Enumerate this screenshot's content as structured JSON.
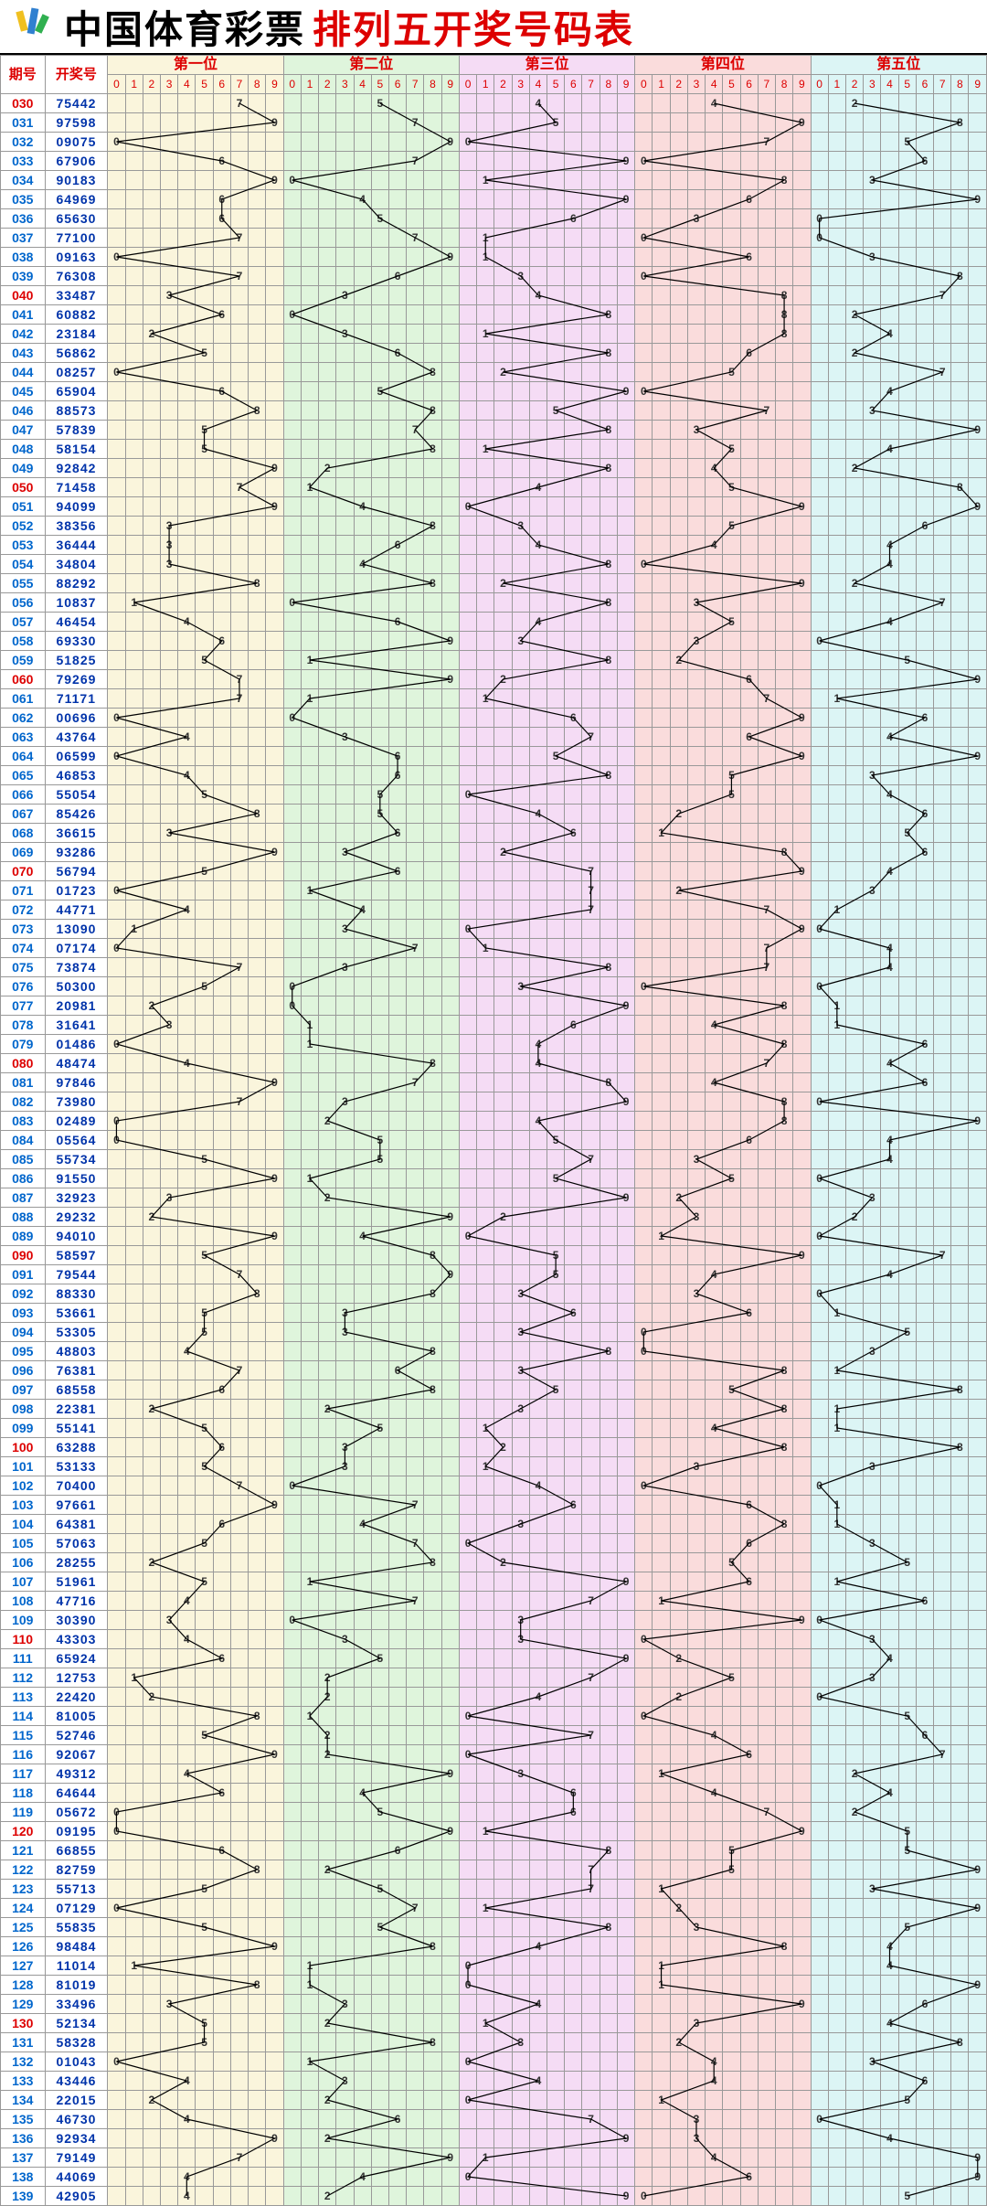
{
  "header": {
    "main": "中国体育彩票",
    "sub": "排列五开奖号码表"
  },
  "columns": {
    "period": "期号",
    "number": "开奖号",
    "positions": [
      "第一位",
      "第二位",
      "第三位",
      "第四位",
      "第五位"
    ]
  },
  "styling": {
    "position_bg": [
      "#faf5dc",
      "#dff5dc",
      "#f5dcf5",
      "#fadcdc",
      "#dcf5f5"
    ],
    "grid_color": "#999999",
    "line_color": "#000000",
    "line_width": 1.2,
    "period_color": "#0066cc",
    "period_red_color": "#dd0000",
    "number_color": "#0033aa",
    "header_text_color": "#dd0000",
    "digit_row_height": 20
  },
  "redPeriods": [
    "030",
    "040",
    "050",
    "060",
    "070",
    "080",
    "090",
    "100",
    "110",
    "120",
    "130"
  ],
  "rows": [
    {
      "p": "030",
      "n": "75442"
    },
    {
      "p": "031",
      "n": "97598"
    },
    {
      "p": "032",
      "n": "09075"
    },
    {
      "p": "033",
      "n": "67906"
    },
    {
      "p": "034",
      "n": "90183"
    },
    {
      "p": "035",
      "n": "64969"
    },
    {
      "p": "036",
      "n": "65630"
    },
    {
      "p": "037",
      "n": "77100"
    },
    {
      "p": "038",
      "n": "09163"
    },
    {
      "p": "039",
      "n": "76308"
    },
    {
      "p": "040",
      "n": "33487"
    },
    {
      "p": "041",
      "n": "60882"
    },
    {
      "p": "042",
      "n": "23184"
    },
    {
      "p": "043",
      "n": "56862"
    },
    {
      "p": "044",
      "n": "08257"
    },
    {
      "p": "045",
      "n": "65904"
    },
    {
      "p": "046",
      "n": "88573"
    },
    {
      "p": "047",
      "n": "57839"
    },
    {
      "p": "048",
      "n": "58154"
    },
    {
      "p": "049",
      "n": "92842"
    },
    {
      "p": "050",
      "n": "71458"
    },
    {
      "p": "051",
      "n": "94099"
    },
    {
      "p": "052",
      "n": "38356"
    },
    {
      "p": "053",
      "n": "36444"
    },
    {
      "p": "054",
      "n": "34804"
    },
    {
      "p": "055",
      "n": "88292"
    },
    {
      "p": "056",
      "n": "10837"
    },
    {
      "p": "057",
      "n": "46454"
    },
    {
      "p": "058",
      "n": "69330"
    },
    {
      "p": "059",
      "n": "51825"
    },
    {
      "p": "060",
      "n": "79269"
    },
    {
      "p": "061",
      "n": "71171"
    },
    {
      "p": "062",
      "n": "00696"
    },
    {
      "p": "063",
      "n": "43764"
    },
    {
      "p": "064",
      "n": "06599"
    },
    {
      "p": "065",
      "n": "46853"
    },
    {
      "p": "066",
      "n": "55054"
    },
    {
      "p": "067",
      "n": "85426"
    },
    {
      "p": "068",
      "n": "36615"
    },
    {
      "p": "069",
      "n": "93286"
    },
    {
      "p": "070",
      "n": "56794"
    },
    {
      "p": "071",
      "n": "01723"
    },
    {
      "p": "072",
      "n": "44771"
    },
    {
      "p": "073",
      "n": "13090"
    },
    {
      "p": "074",
      "n": "07174"
    },
    {
      "p": "075",
      "n": "73874"
    },
    {
      "p": "076",
      "n": "50300"
    },
    {
      "p": "077",
      "n": "20981"
    },
    {
      "p": "078",
      "n": "31641"
    },
    {
      "p": "079",
      "n": "01486"
    },
    {
      "p": "080",
      "n": "48474"
    },
    {
      "p": "081",
      "n": "97846"
    },
    {
      "p": "082",
      "n": "73980"
    },
    {
      "p": "083",
      "n": "02489"
    },
    {
      "p": "084",
      "n": "05564"
    },
    {
      "p": "085",
      "n": "55734"
    },
    {
      "p": "086",
      "n": "91550"
    },
    {
      "p": "087",
      "n": "32923"
    },
    {
      "p": "088",
      "n": "29232"
    },
    {
      "p": "089",
      "n": "94010"
    },
    {
      "p": "090",
      "n": "58597"
    },
    {
      "p": "091",
      "n": "79544"
    },
    {
      "p": "092",
      "n": "88330"
    },
    {
      "p": "093",
      "n": "53661"
    },
    {
      "p": "094",
      "n": "53305"
    },
    {
      "p": "095",
      "n": "48803"
    },
    {
      "p": "096",
      "n": "76381"
    },
    {
      "p": "097",
      "n": "68558"
    },
    {
      "p": "098",
      "n": "22381"
    },
    {
      "p": "099",
      "n": "55141"
    },
    {
      "p": "100",
      "n": "63288"
    },
    {
      "p": "101",
      "n": "53133"
    },
    {
      "p": "102",
      "n": "70400"
    },
    {
      "p": "103",
      "n": "97661"
    },
    {
      "p": "104",
      "n": "64381"
    },
    {
      "p": "105",
      "n": "57063"
    },
    {
      "p": "106",
      "n": "28255"
    },
    {
      "p": "107",
      "n": "51961"
    },
    {
      "p": "108",
      "n": "47716"
    },
    {
      "p": "109",
      "n": "30390"
    },
    {
      "p": "110",
      "n": "43303"
    },
    {
      "p": "111",
      "n": "65924"
    },
    {
      "p": "112",
      "n": "12753"
    },
    {
      "p": "113",
      "n": "22420"
    },
    {
      "p": "114",
      "n": "81005"
    },
    {
      "p": "115",
      "n": "52746"
    },
    {
      "p": "116",
      "n": "92067"
    },
    {
      "p": "117",
      "n": "49312"
    },
    {
      "p": "118",
      "n": "64644"
    },
    {
      "p": "119",
      "n": "05672"
    },
    {
      "p": "120",
      "n": "09195"
    },
    {
      "p": "121",
      "n": "66855"
    },
    {
      "p": "122",
      "n": "82759"
    },
    {
      "p": "123",
      "n": "55713"
    },
    {
      "p": "124",
      "n": "07129"
    },
    {
      "p": "125",
      "n": "55835"
    },
    {
      "p": "126",
      "n": "98484"
    },
    {
      "p": "127",
      "n": "11014"
    },
    {
      "p": "128",
      "n": "81019"
    },
    {
      "p": "129",
      "n": "33496"
    },
    {
      "p": "130",
      "n": "52134"
    },
    {
      "p": "131",
      "n": "58328"
    },
    {
      "p": "132",
      "n": "01043"
    },
    {
      "p": "133",
      "n": "43446"
    },
    {
      "p": "134",
      "n": "22015"
    },
    {
      "p": "135",
      "n": "46730"
    },
    {
      "p": "136",
      "n": "92934"
    },
    {
      "p": "137",
      "n": "79149"
    },
    {
      "p": "138",
      "n": "44069"
    },
    {
      "p": "139",
      "n": "42905"
    }
  ]
}
